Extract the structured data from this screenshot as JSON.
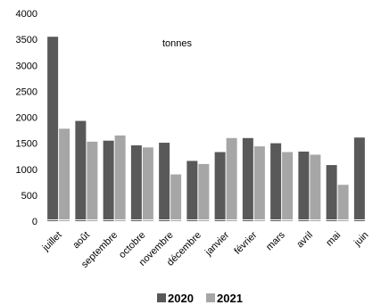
{
  "chart_data": {
    "type": "bar",
    "annotation": "tonnes",
    "categories": [
      "juillet",
      "août",
      "septembre",
      "octobre",
      "novembre",
      "décembre",
      "janvier",
      "février",
      "mars",
      "avril",
      "mai",
      "juin"
    ],
    "series": [
      {
        "name": "2020",
        "color": "#595959",
        "values": [
          3550,
          1930,
          1550,
          1460,
          1510,
          1160,
          1330,
          1600,
          1500,
          1340,
          1080,
          1610
        ]
      },
      {
        "name": "2021",
        "color": "#a6a6a6",
        "values": [
          1780,
          1530,
          1650,
          1420,
          900,
          1100,
          1600,
          1440,
          1330,
          1280,
          700,
          null
        ]
      }
    ],
    "yticks": [
      "0",
      "500",
      "1000",
      "1500",
      "2000",
      "2500",
      "3000",
      "3500",
      "4000"
    ],
    "ylim": [
      0,
      4000
    ],
    "grid": false,
    "legend_position": "bottom"
  }
}
